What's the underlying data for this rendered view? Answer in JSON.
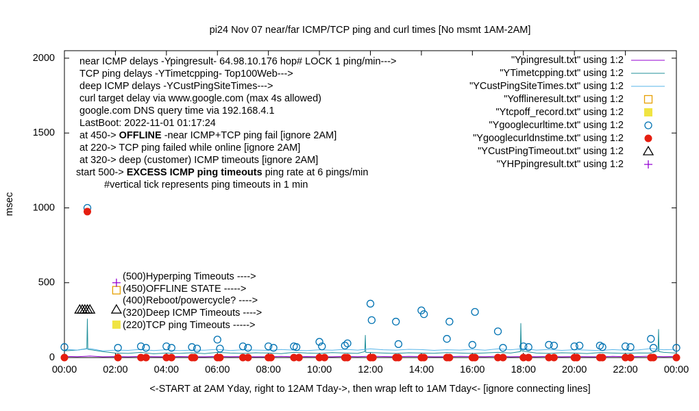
{
  "chart_data": {
    "type": "scatter",
    "title": "pi24 Nov 07  near/far ICMP/TCP ping and curl times [No msmt 1AM-2AM]",
    "xlabel": "<-START at 2AM Yday, right to 12AM Tday->, then wrap left to 1AM Tday<- [ignore connecting lines]",
    "ylabel": "msec",
    "xlim": [
      0,
      24
    ],
    "ylim": [
      0,
      2050
    ],
    "xticks": [
      {
        "value": 0,
        "label": "00:00"
      },
      {
        "value": 2,
        "label": "02:00"
      },
      {
        "value": 4,
        "label": "04:00"
      },
      {
        "value": 6,
        "label": "06:00"
      },
      {
        "value": 8,
        "label": "08:00"
      },
      {
        "value": 10,
        "label": "10:00"
      },
      {
        "value": 12,
        "label": "12:00"
      },
      {
        "value": 14,
        "label": "14:00"
      },
      {
        "value": 16,
        "label": "16:00"
      },
      {
        "value": 18,
        "label": "18:00"
      },
      {
        "value": 20,
        "label": "20:00"
      },
      {
        "value": 22,
        "label": "22:00"
      },
      {
        "value": 24,
        "label": "00:00"
      }
    ],
    "yticks": [
      0,
      500,
      1000,
      1500,
      2000
    ],
    "legend": "top-right",
    "grid": false,
    "annotations": [
      [
        {
          "text": "near ICMP delays -Ypingresult- 64.98.10.176 hop# LOCK 1 ping/min--->"
        }
      ],
      [
        {
          "text": "TCP ping delays -YTimetcpping- Top100Web--->"
        }
      ],
      [
        {
          "text": "deep ICMP delays -YCustPingSiteTimes--->"
        }
      ],
      [
        {
          "text": "curl target delay via www.google.com (max 4s allowed)"
        }
      ],
      [
        {
          "text": "google.com DNS query time via 192.168.4.1"
        }
      ],
      [
        {
          "text": "LastBoot: 2022-11-01 01:17:24"
        }
      ],
      [
        {
          "text": "at 450-> "
        },
        {
          "text": "OFFLINE",
          "bold": true
        },
        {
          "text": " -near ICMP+TCP ping fail [ignore 2AM]"
        }
      ],
      [
        {
          "text": "at 220-> TCP ping failed while online [ignore 2AM]"
        }
      ],
      [
        {
          "text": "at 320-> deep (customer) ICMP timeouts [ignore 2AM]"
        }
      ],
      [
        {
          "text": "start 500-> "
        },
        {
          "text": "EXCESS ICMP ping timeouts",
          "bold": true
        },
        {
          "text": " ping rate at 6 pings/min"
        }
      ],
      [
        {
          "text": "#vertical tick represents ping timeouts in 1 min"
        }
      ]
    ],
    "point_labels": [
      "(500)Hyperping Timeouts ---->",
      "(450)OFFLINE STATE ----->",
      "(400)Reboot/powercycle? ---->",
      "(320)Deep ICMP Timeouts ---->",
      "(220)TCP ping Timeouts ----->"
    ],
    "series": [
      {
        "name": "\"Ypingresult.txt\" using 1:2",
        "color": "#9400d3",
        "marker": "line",
        "x": [
          0,
          0.5,
          1,
          1.5,
          2,
          2.5,
          3,
          3.5,
          4,
          4.5,
          5,
          5.5,
          6,
          6.5,
          7,
          7.5,
          8,
          8.5,
          9,
          9.5,
          10,
          10.5,
          11,
          11.5,
          12,
          12.5,
          13,
          13.5,
          14,
          14.5,
          15,
          15.5,
          16,
          16.5,
          17,
          17.5,
          18,
          18.5,
          19,
          19.5,
          20,
          20.5,
          21,
          21.5,
          22,
          22.5,
          23,
          23.5,
          24
        ],
        "values": [
          8,
          6,
          10,
          5,
          7,
          5,
          8,
          6,
          5,
          7,
          6,
          5,
          8,
          6,
          7,
          5,
          6,
          8,
          5,
          7,
          6,
          5,
          8,
          6,
          9,
          7,
          6,
          8,
          7,
          5,
          6,
          8,
          7,
          6,
          9,
          5,
          7,
          6,
          8,
          5,
          7,
          6,
          5,
          8,
          6,
          7,
          9,
          6,
          8
        ]
      },
      {
        "name": "\"YTimetcpping.txt\" using 1:2",
        "color": "#1f8f9a",
        "marker": "line",
        "x": [
          0,
          0.5,
          0.88,
          0.9,
          0.92,
          1.5,
          2,
          2.5,
          3,
          3.5,
          4,
          4.5,
          5,
          5.5,
          6,
          6.5,
          7,
          7.5,
          8,
          8.5,
          9,
          9.5,
          10,
          10.5,
          11,
          11.5,
          11.78,
          11.8,
          11.82,
          12.5,
          13,
          13.5,
          14,
          14.5,
          15,
          15.5,
          16,
          16.5,
          17,
          17.5,
          17.88,
          17.9,
          17.92,
          18.5,
          19,
          19.5,
          20,
          20.5,
          21,
          21.5,
          22,
          22.5,
          23,
          23.28,
          23.3,
          23.32,
          23.5,
          24
        ],
        "values": [
          45,
          50,
          60,
          260,
          55,
          40,
          30,
          28,
          35,
          25,
          30,
          28,
          32,
          26,
          35,
          30,
          28,
          32,
          30,
          26,
          35,
          30,
          28,
          33,
          30,
          28,
          40,
          150,
          35,
          30,
          28,
          32,
          30,
          29,
          33,
          30,
          28,
          31,
          35,
          30,
          40,
          230,
          45,
          30,
          28,
          32,
          30,
          27,
          33,
          30,
          28,
          31,
          30,
          45,
          190,
          40,
          35,
          30
        ]
      },
      {
        "name": "\"YCustPingSiteTimes.txt\" using 1:2",
        "color": "#56b4e9",
        "marker": "line",
        "x": [
          0,
          0.5,
          1,
          1.5,
          2,
          2.5,
          3,
          3.5,
          4,
          4.5,
          5,
          5.5,
          6,
          6.5,
          7,
          7.5,
          8,
          8.5,
          9,
          9.5,
          10,
          10.5,
          11,
          11.5,
          12,
          12.5,
          13,
          13.5,
          14,
          14.5,
          15,
          15.5,
          16,
          16.5,
          17,
          17.5,
          18,
          18.5,
          19,
          19.5,
          20,
          20.5,
          21,
          21.5,
          22,
          22.5,
          23,
          23.5,
          24
        ],
        "values": [
          55,
          50,
          60,
          45,
          50,
          48,
          55,
          47,
          52,
          46,
          50,
          49,
          55,
          47,
          52,
          50,
          48,
          54,
          50,
          46,
          52,
          49,
          55,
          50,
          58,
          52,
          50,
          55,
          53,
          48,
          52,
          50,
          55,
          49,
          58,
          52,
          60,
          50,
          54,
          48,
          52,
          50,
          47,
          53,
          49,
          51,
          60,
          52,
          55
        ]
      },
      {
        "name": "\"Yofflineresult.txt\" using 1:2",
        "color": "#e69f00",
        "marker": "open-square",
        "x": [
          2.04
        ],
        "values": [
          450
        ]
      },
      {
        "name": "\"Ytcpoff_record.txt\" using 1:2",
        "color": "#f0e442",
        "marker": "filled-square",
        "x": [
          2.04
        ],
        "values": [
          220
        ]
      },
      {
        "name": "\"Ygooglecurltime.txt\" using 1:2",
        "color": "#0072b2",
        "marker": "open-circle",
        "x": [
          0,
          0.9,
          2.1,
          3,
          3.2,
          4,
          4.2,
          5,
          5.2,
          6,
          6.1,
          7,
          7.2,
          8,
          8.2,
          9,
          9.1,
          10,
          10.1,
          11,
          11.1,
          12,
          12.05,
          13,
          13.1,
          14,
          14.1,
          15,
          15.1,
          16,
          16.1,
          17,
          17.2,
          18,
          18.2,
          19,
          19.2,
          20,
          20.2,
          21,
          21.1,
          22,
          22.2,
          23,
          23.1,
          24
        ],
        "values": [
          70,
          1000,
          65,
          75,
          65,
          75,
          65,
          70,
          60,
          120,
          60,
          75,
          65,
          75,
          65,
          75,
          70,
          105,
          75,
          80,
          95,
          360,
          250,
          240,
          90,
          315,
          290,
          125,
          240,
          85,
          305,
          175,
          65,
          75,
          70,
          85,
          80,
          75,
          80,
          80,
          70,
          75,
          70,
          125,
          65,
          65
        ]
      },
      {
        "name": "\"Ygooglecurldnstime.txt\" using 1:2",
        "color": "#e51e10",
        "marker": "filled-circle",
        "x": [
          0,
          0.9,
          2.1,
          3,
          3.2,
          4,
          4.2,
          5,
          5.1,
          6,
          6.1,
          7,
          7.2,
          8,
          8.1,
          9,
          9.2,
          10,
          10.2,
          11,
          11.1,
          12,
          12.1,
          13,
          13.1,
          14,
          14.1,
          15,
          15.1,
          16,
          16.1,
          17,
          17.2,
          18,
          18.2,
          19,
          19.2,
          20,
          20.1,
          21,
          21.1,
          22,
          22.2,
          23,
          23.1,
          24
        ],
        "values": [
          0,
          975,
          0,
          0,
          0,
          0,
          0,
          0,
          0,
          0,
          0,
          0,
          0,
          0,
          0,
          0,
          0,
          0,
          0,
          0,
          0,
          0,
          0,
          0,
          0,
          0,
          0,
          0,
          0,
          0,
          0,
          0,
          0,
          0,
          0,
          0,
          0,
          0,
          0,
          0,
          0,
          0,
          0,
          0,
          0,
          0
        ]
      },
      {
        "name": "\"YCustPingTimeout.txt\" using 1:2",
        "color": "#000000",
        "marker": "open-triangle",
        "x": [
          0.6,
          0.7,
          0.8,
          0.9,
          1.0,
          2.04
        ],
        "values": [
          320,
          320,
          320,
          320,
          320,
          320
        ]
      },
      {
        "name": "\"YHPpingresult.txt\" using 1:2",
        "color": "#9400d3",
        "marker": "plus",
        "x": [
          2.04
        ],
        "values": [
          500
        ]
      }
    ]
  }
}
